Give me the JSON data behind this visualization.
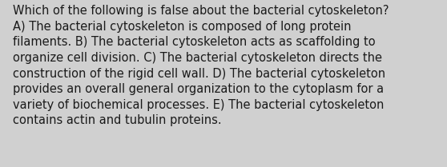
{
  "background_color": "#d0d0d0",
  "text_color": "#1a1a1a",
  "lines": [
    "Which of the following is false about the bacterial cytoskeleton?",
    "A) The bacterial cytoskeleton is composed of long protein",
    "filaments. B) The bacterial cytoskeleton acts as scaffolding to",
    "organize cell division. C) The bacterial cytoskeleton directs the",
    "construction of the rigid cell wall. D) The bacterial cytoskeleton",
    "provides an overall general organization to the cytoplasm for a",
    "variety of biochemical processes. E) The bacterial cytoskeleton",
    "contains actin and tubulin proteins."
  ],
  "font_size": 10.5,
  "font_family": "DejaVu Sans",
  "fig_width": 5.58,
  "fig_height": 2.09,
  "dpi": 100
}
